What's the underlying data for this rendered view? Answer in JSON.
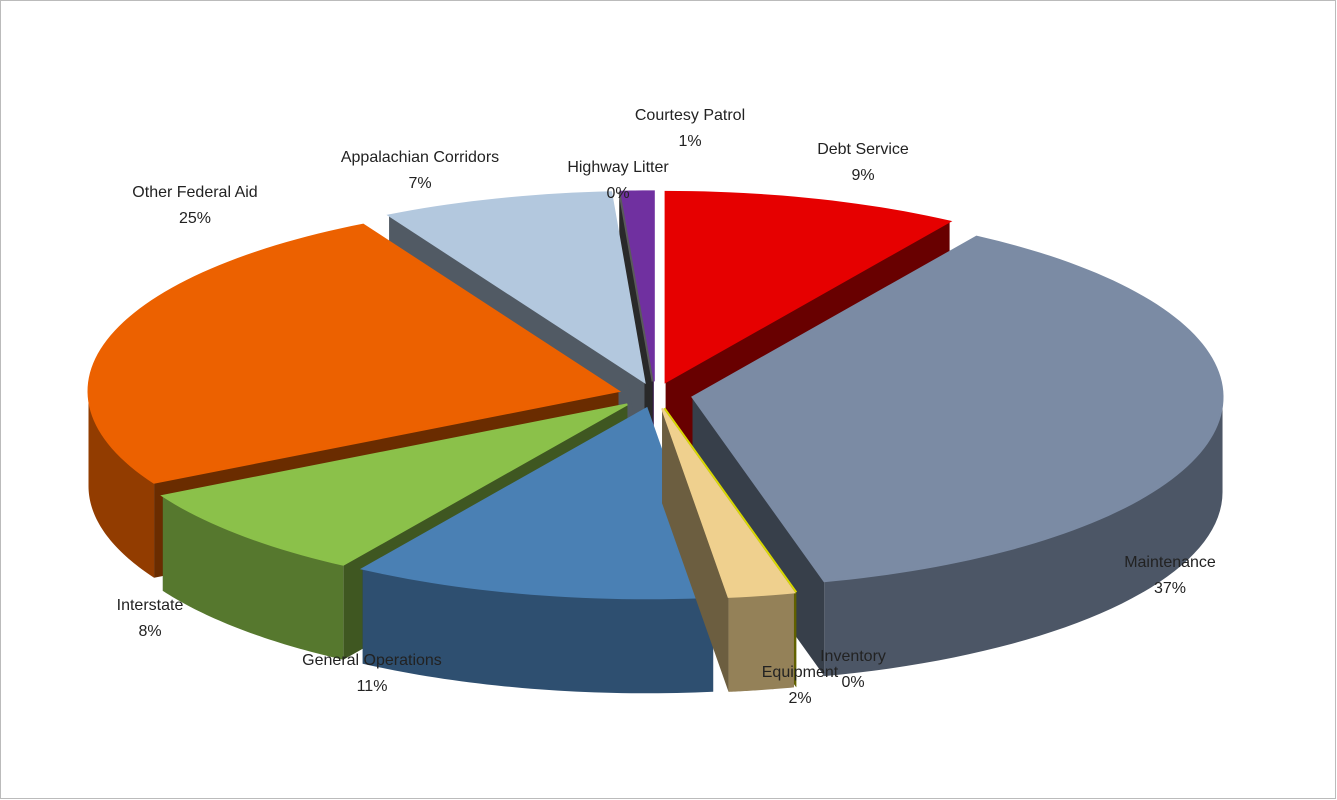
{
  "chart_data": {
    "type": "pie3d",
    "categories": [
      "Debt Service",
      "Maintenance",
      "Inventory",
      "Equipment",
      "General Operations",
      "Interstate",
      "Other Federal Aid",
      "Appalachian Corridors",
      "Highway Litter",
      "Courtesy Patrol"
    ],
    "values": [
      9,
      37,
      0,
      2,
      11,
      8,
      25,
      7,
      0,
      1
    ],
    "value_labels": [
      "9%",
      "37%",
      "0%",
      "2%",
      "11%",
      "8%",
      "25%",
      "7%",
      "0%",
      "1%"
    ],
    "colors": [
      "#e60000",
      "#7b8ba4",
      "#d8d800",
      "#efd08e",
      "#4a80b4",
      "#8bc14a",
      "#ec6100",
      "#b3c8de",
      "#5a5a5a",
      "#7030a0"
    ]
  }
}
